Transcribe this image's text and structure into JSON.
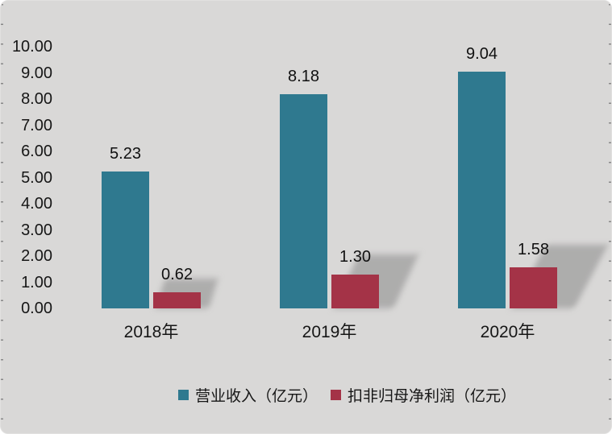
{
  "chart_data": {
    "type": "bar",
    "title": "",
    "categories": [
      "2018年",
      "2019年",
      "2020年"
    ],
    "series": [
      {
        "name": "营业收入（亿元）",
        "color": "#2F798F",
        "values": [
          5.23,
          8.18,
          9.04
        ],
        "labels": [
          "5.23",
          "8.18",
          "9.04"
        ],
        "shadow": false
      },
      {
        "name": "扣非归母净利润（亿元）",
        "color": "#A43347",
        "values": [
          0.62,
          1.3,
          1.58
        ],
        "labels": [
          "0.62",
          "1.30",
          "1.58"
        ],
        "shadow": true
      }
    ],
    "xlabel": "",
    "ylabel": "",
    "ylim": [
      0,
      10
    ],
    "ytick_step": 1,
    "y_tick_labels": [
      "0.00",
      "1.00",
      "2.00",
      "3.00",
      "4.00",
      "5.00",
      "6.00",
      "7.00",
      "8.00",
      "9.00",
      "10.00"
    ],
    "grid": false,
    "value_labels_shown": true,
    "legend_position": "bottom"
  },
  "colors": {
    "background": "#D9D8D7",
    "text": "#161616",
    "shadow": "rgba(125,125,125,0.48)"
  }
}
